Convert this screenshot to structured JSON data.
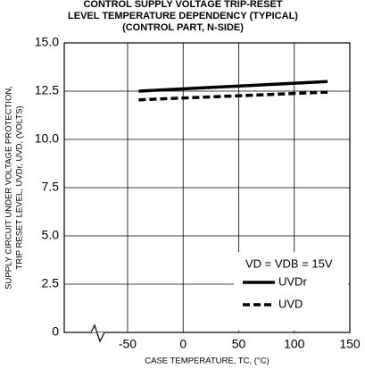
{
  "chart_data": {
    "type": "line",
    "title": [
      "CONTROL SUPPLY VOLTAGE TRIP-RESET",
      "LEVEL TEMPERATURE DEPENDENCY (TYPICAL)",
      "(CONTROL PART, N-SIDE)"
    ],
    "x_label": "CASE TEMPERATURE, TC, (°C)",
    "y_label": [
      "SUPPLY CIRCUIT UNDER VOLTAGE PROTECTION,",
      "TRIP RESET LEVEL, UVDr, UVD, (VOLTS)"
    ],
    "annotation": "VD = VDB = 15V",
    "x": [
      -40,
      130
    ],
    "series": [
      {
        "name": "UVDr",
        "color": "#000000",
        "dash": false,
        "values": [
          12.5,
          13.0
        ]
      },
      {
        "name": "UVD",
        "color": "#000000",
        "dash": true,
        "values": [
          12.05,
          12.45
        ]
      }
    ],
    "xlim": [
      -107,
      150
    ],
    "xticks": [
      -50,
      0,
      50,
      100,
      150
    ],
    "ylim": [
      0,
      15
    ],
    "yticks": [
      0,
      2.5,
      {
        "value": 5,
        "label": "5.0"
      },
      7.5,
      {
        "value": 10,
        "label": "10.0"
      },
      12.5,
      {
        "value": 15,
        "label": "15.0"
      }
    ],
    "grid": true
  }
}
